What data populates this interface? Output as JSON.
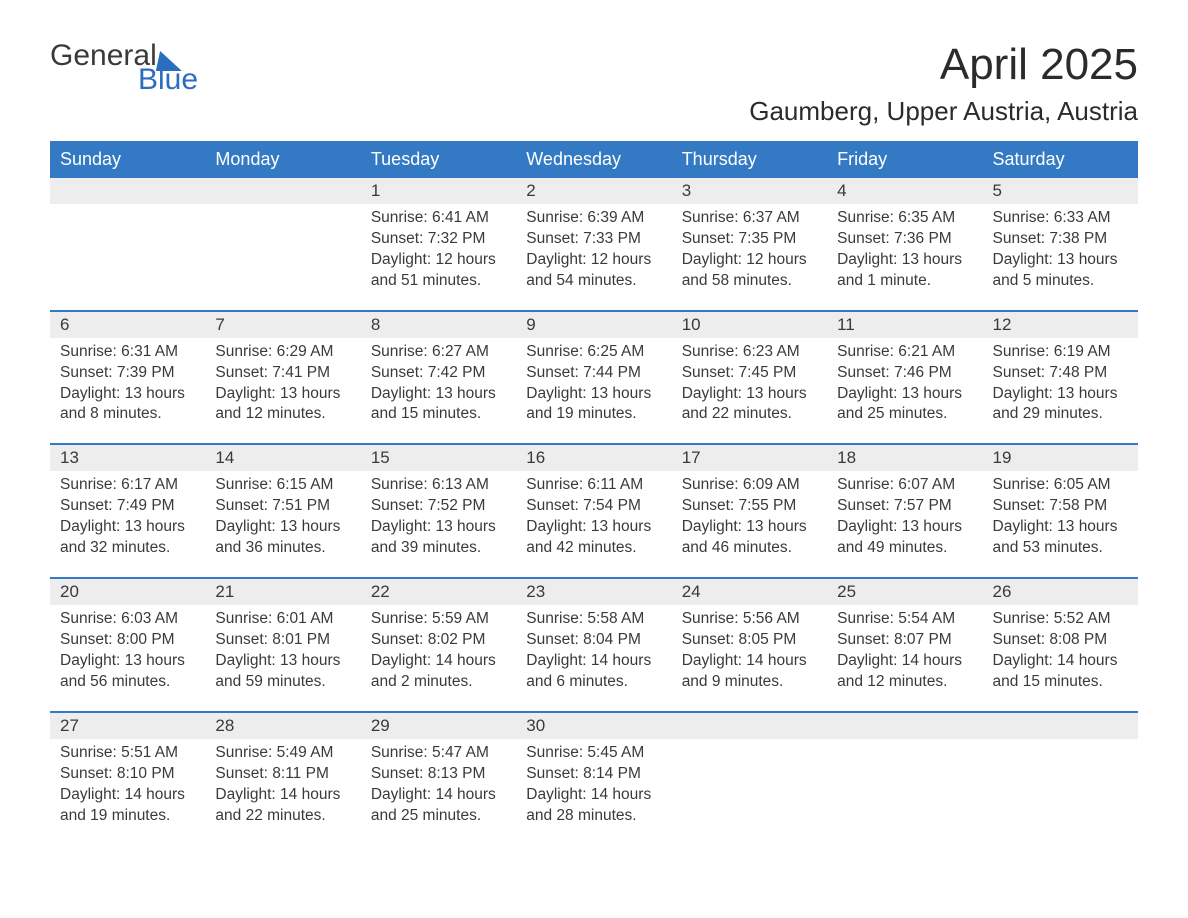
{
  "brand": {
    "word1": "General",
    "word2": "Blue",
    "accent_color": "#2b6dbf"
  },
  "title": "April 2025",
  "location": "Gaumberg, Upper Austria, Austria",
  "colors": {
    "header_bg": "#3379c3",
    "header_text": "#ffffff",
    "daynum_bg": "#ededed",
    "week_divider": "#3379c3",
    "body_text": "#3a3a3a",
    "page_bg": "#ffffff"
  },
  "typography": {
    "title_fontsize": 44,
    "location_fontsize": 26,
    "header_fontsize": 18,
    "daynum_fontsize": 17,
    "cell_fontsize": 15.5
  },
  "layout": {
    "columns": 7,
    "weeks": 5
  },
  "weekdays": [
    "Sunday",
    "Monday",
    "Tuesday",
    "Wednesday",
    "Thursday",
    "Friday",
    "Saturday"
  ],
  "labels": {
    "sunrise": "Sunrise:",
    "sunset": "Sunset:",
    "daylight": "Daylight:"
  },
  "weeks": [
    [
      null,
      null,
      {
        "n": "1",
        "sunrise": "6:41 AM",
        "sunset": "7:32 PM",
        "daylight": "12 hours and 51 minutes."
      },
      {
        "n": "2",
        "sunrise": "6:39 AM",
        "sunset": "7:33 PM",
        "daylight": "12 hours and 54 minutes."
      },
      {
        "n": "3",
        "sunrise": "6:37 AM",
        "sunset": "7:35 PM",
        "daylight": "12 hours and 58 minutes."
      },
      {
        "n": "4",
        "sunrise": "6:35 AM",
        "sunset": "7:36 PM",
        "daylight": "13 hours and 1 minute."
      },
      {
        "n": "5",
        "sunrise": "6:33 AM",
        "sunset": "7:38 PM",
        "daylight": "13 hours and 5 minutes."
      }
    ],
    [
      {
        "n": "6",
        "sunrise": "6:31 AM",
        "sunset": "7:39 PM",
        "daylight": "13 hours and 8 minutes."
      },
      {
        "n": "7",
        "sunrise": "6:29 AM",
        "sunset": "7:41 PM",
        "daylight": "13 hours and 12 minutes."
      },
      {
        "n": "8",
        "sunrise": "6:27 AM",
        "sunset": "7:42 PM",
        "daylight": "13 hours and 15 minutes."
      },
      {
        "n": "9",
        "sunrise": "6:25 AM",
        "sunset": "7:44 PM",
        "daylight": "13 hours and 19 minutes."
      },
      {
        "n": "10",
        "sunrise": "6:23 AM",
        "sunset": "7:45 PM",
        "daylight": "13 hours and 22 minutes."
      },
      {
        "n": "11",
        "sunrise": "6:21 AM",
        "sunset": "7:46 PM",
        "daylight": "13 hours and 25 minutes."
      },
      {
        "n": "12",
        "sunrise": "6:19 AM",
        "sunset": "7:48 PM",
        "daylight": "13 hours and 29 minutes."
      }
    ],
    [
      {
        "n": "13",
        "sunrise": "6:17 AM",
        "sunset": "7:49 PM",
        "daylight": "13 hours and 32 minutes."
      },
      {
        "n": "14",
        "sunrise": "6:15 AM",
        "sunset": "7:51 PM",
        "daylight": "13 hours and 36 minutes."
      },
      {
        "n": "15",
        "sunrise": "6:13 AM",
        "sunset": "7:52 PM",
        "daylight": "13 hours and 39 minutes."
      },
      {
        "n": "16",
        "sunrise": "6:11 AM",
        "sunset": "7:54 PM",
        "daylight": "13 hours and 42 minutes."
      },
      {
        "n": "17",
        "sunrise": "6:09 AM",
        "sunset": "7:55 PM",
        "daylight": "13 hours and 46 minutes."
      },
      {
        "n": "18",
        "sunrise": "6:07 AM",
        "sunset": "7:57 PM",
        "daylight": "13 hours and 49 minutes."
      },
      {
        "n": "19",
        "sunrise": "6:05 AM",
        "sunset": "7:58 PM",
        "daylight": "13 hours and 53 minutes."
      }
    ],
    [
      {
        "n": "20",
        "sunrise": "6:03 AM",
        "sunset": "8:00 PM",
        "daylight": "13 hours and 56 minutes."
      },
      {
        "n": "21",
        "sunrise": "6:01 AM",
        "sunset": "8:01 PM",
        "daylight": "13 hours and 59 minutes."
      },
      {
        "n": "22",
        "sunrise": "5:59 AM",
        "sunset": "8:02 PM",
        "daylight": "14 hours and 2 minutes."
      },
      {
        "n": "23",
        "sunrise": "5:58 AM",
        "sunset": "8:04 PM",
        "daylight": "14 hours and 6 minutes."
      },
      {
        "n": "24",
        "sunrise": "5:56 AM",
        "sunset": "8:05 PM",
        "daylight": "14 hours and 9 minutes."
      },
      {
        "n": "25",
        "sunrise": "5:54 AM",
        "sunset": "8:07 PM",
        "daylight": "14 hours and 12 minutes."
      },
      {
        "n": "26",
        "sunrise": "5:52 AM",
        "sunset": "8:08 PM",
        "daylight": "14 hours and 15 minutes."
      }
    ],
    [
      {
        "n": "27",
        "sunrise": "5:51 AM",
        "sunset": "8:10 PM",
        "daylight": "14 hours and 19 minutes."
      },
      {
        "n": "28",
        "sunrise": "5:49 AM",
        "sunset": "8:11 PM",
        "daylight": "14 hours and 22 minutes."
      },
      {
        "n": "29",
        "sunrise": "5:47 AM",
        "sunset": "8:13 PM",
        "daylight": "14 hours and 25 minutes."
      },
      {
        "n": "30",
        "sunrise": "5:45 AM",
        "sunset": "8:14 PM",
        "daylight": "14 hours and 28 minutes."
      },
      null,
      null,
      null
    ]
  ]
}
